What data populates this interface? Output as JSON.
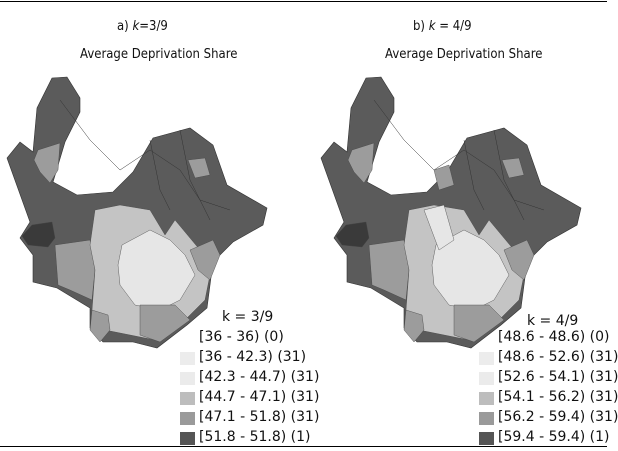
{
  "panels": [
    {
      "label_prefix": "a) ",
      "label_k": "k",
      "label_suffix": "=3/9",
      "subtitle": "Average Deprivation Share",
      "legend": {
        "title": "k = 3/9",
        "items": [
          {
            "label": "[36 - 36) (0)",
            "color": null
          },
          {
            "label": "[36 - 42.3) (31)",
            "color": "#ececec"
          },
          {
            "label": "[42.3 - 44.7) (31)",
            "color": "#ebebeb"
          },
          {
            "label": "[44.7 - 47.1) (31)",
            "color": "#bdbdbd"
          },
          {
            "label": "[47.1 - 51.8) (31)",
            "color": "#9a9a9a"
          },
          {
            "label": "[51.8 - 51.8) (1)",
            "color": "#555555"
          }
        ]
      }
    },
    {
      "label_prefix": "b) ",
      "label_k": "k",
      "label_suffix": " = 4/9",
      "subtitle": "Average Deprivation Share",
      "legend": {
        "title": "k = 4/9",
        "items": [
          {
            "label": "[48.6 - 48.6) (0)",
            "color": null
          },
          {
            "label": "[48.6 - 52.6) (31)",
            "color": "#ececec"
          },
          {
            "label": "[52.6 - 54.1) (31)",
            "color": "#ebebeb"
          },
          {
            "label": "[54.1 - 56.2) (31)",
            "color": "#bdbdbd"
          },
          {
            "label": "[56.2 - 59.4) (31)",
            "color": "#9a9a9a"
          },
          {
            "label": "[59.4 - 59.4) (1)",
            "color": "#555555"
          }
        ]
      }
    }
  ],
  "map_colors": {
    "base": "#5b5b5b",
    "darkest": "#3a3a3a",
    "light": "#e6e6e6",
    "mid_light": "#c4c4c4",
    "mid": "#9c9c9c"
  }
}
